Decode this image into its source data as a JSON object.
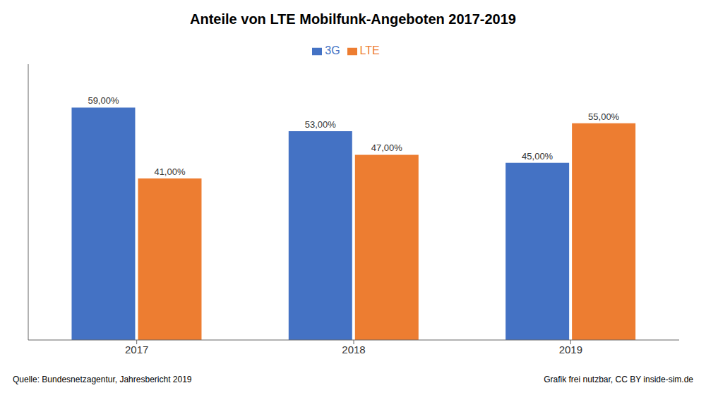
{
  "chart_data": {
    "type": "bar",
    "title": "Anteile von LTE Mobilfunk-Angeboten 2017-2019",
    "categories": [
      "2017",
      "2018",
      "2019"
    ],
    "series": [
      {
        "name": "3G",
        "color": "#4472C4",
        "values": [
          59,
          53,
          45
        ],
        "value_labels": [
          "59,00%",
          "53,00%",
          "45,00%"
        ]
      },
      {
        "name": "LTE",
        "color": "#ED7D31",
        "values": [
          41,
          47,
          55
        ],
        "value_labels": [
          "41,00%",
          "47,00%",
          "55,00%"
        ]
      }
    ],
    "ylim": [
      0,
      70
    ],
    "tick_labels": "x",
    "legend": "top",
    "data_labels": true,
    "grid": false,
    "annotations": [
      "Quelle: Bundesnetzagentur, Jahresbericht 2019",
      "Grafik frei nutzbar, CC BY inside-sim.de"
    ]
  }
}
